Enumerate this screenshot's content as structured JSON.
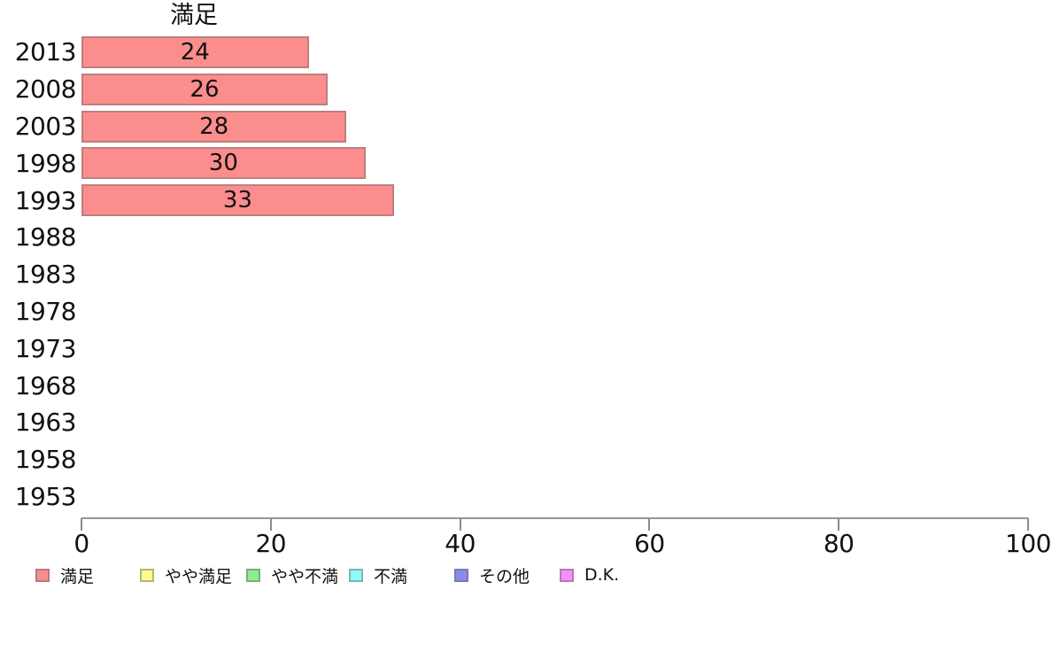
{
  "chart_data": {
    "type": "bar",
    "orientation": "horizontal",
    "title": "満足",
    "categories": [
      "2013",
      "2008",
      "2003",
      "1998",
      "1993",
      "1988",
      "1983",
      "1978",
      "1973",
      "1968",
      "1963",
      "1958",
      "1953"
    ],
    "series": [
      {
        "name": "満足",
        "color": "#fb8d8d",
        "values": [
          24,
          26,
          28,
          30,
          33,
          null,
          null,
          null,
          null,
          null,
          null,
          null,
          null
        ]
      }
    ],
    "value_labels_shown": true,
    "xlabel": "",
    "ylabel": "",
    "xlim": [
      0,
      100
    ],
    "xticks": [
      0,
      20,
      40,
      60,
      80,
      100
    ],
    "grid": "off",
    "legend_position": "bottom",
    "legend": [
      {
        "label": "満足",
        "color": "#fb8d8d"
      },
      {
        "label": "やや満足",
        "color": "#fbfb8d"
      },
      {
        "label": "やや不満",
        "color": "#8dee8d"
      },
      {
        "label": "不満",
        "color": "#8dfbfb"
      },
      {
        "label": "その他",
        "color": "#8b8bee"
      },
      {
        "label": "D.K.",
        "color": "#fa8dfa"
      }
    ],
    "colors": {
      "bar_border": "rgba(105,105,105,0.42)",
      "axis_line": "#969696",
      "text": "#111111"
    }
  }
}
